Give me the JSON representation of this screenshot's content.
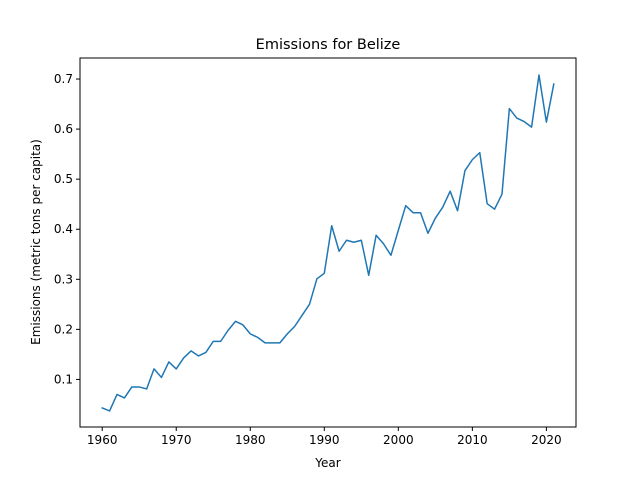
{
  "chart_data": {
    "type": "line",
    "title": "Emissions for Belize",
    "xlabel": "Year",
    "ylabel": "Emissions (metric tons per capita)",
    "xlim": [
      1957,
      2024
    ],
    "ylim": [
      0.005,
      0.742
    ],
    "xticks": [
      1960,
      1970,
      1980,
      1990,
      2000,
      2010,
      2020
    ],
    "yticks": [
      0.1,
      0.2,
      0.3,
      0.4,
      0.5,
      0.6,
      0.7
    ],
    "grid": false,
    "series": [
      {
        "color": "#1f77b4",
        "x": [
          1960,
          1961,
          1962,
          1963,
          1964,
          1965,
          1966,
          1967,
          1968,
          1969,
          1970,
          1971,
          1972,
          1973,
          1974,
          1975,
          1976,
          1977,
          1978,
          1979,
          1980,
          1981,
          1982,
          1983,
          1984,
          1985,
          1986,
          1987,
          1988,
          1989,
          1990,
          1991,
          1992,
          1993,
          1994,
          1995,
          1996,
          1997,
          1998,
          1999,
          2000,
          2001,
          2002,
          2003,
          2004,
          2005,
          2006,
          2007,
          2008,
          2009,
          2010,
          2011,
          2012,
          2013,
          2014,
          2015,
          2016,
          2017,
          2018,
          2019,
          2020,
          2021
        ],
        "y": [
          0.043,
          0.037,
          0.07,
          0.063,
          0.085,
          0.085,
          0.081,
          0.121,
          0.104,
          0.135,
          0.121,
          0.143,
          0.157,
          0.147,
          0.154,
          0.176,
          0.176,
          0.198,
          0.216,
          0.209,
          0.191,
          0.184,
          0.173,
          0.173,
          0.173,
          0.191,
          0.206,
          0.228,
          0.25,
          0.301,
          0.312,
          0.407,
          0.356,
          0.378,
          0.374,
          0.378,
          0.308,
          0.388,
          0.371,
          0.348,
          0.398,
          0.447,
          0.433,
          0.433,
          0.392,
          0.422,
          0.444,
          0.476,
          0.437,
          0.517,
          0.539,
          0.553,
          0.451,
          0.44,
          0.47,
          0.641,
          0.622,
          0.615,
          0.604,
          0.708,
          0.614,
          0.69
        ]
      }
    ]
  }
}
